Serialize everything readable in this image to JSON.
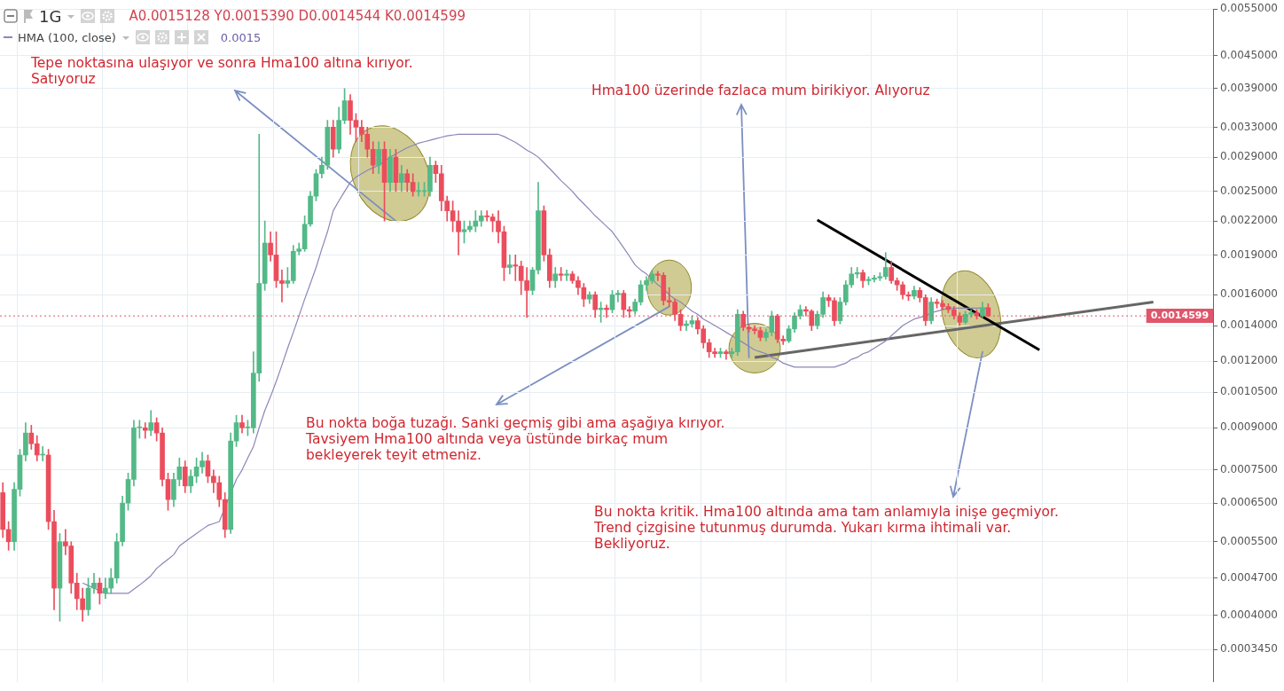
{
  "chart_data": {
    "type": "candlestick",
    "title": "1G",
    "categories": [
      null,
      null,
      null,
      null,
      null,
      null,
      null,
      null,
      null,
      null,
      null,
      null,
      null,
      null,
      null,
      null,
      null,
      null,
      null,
      null,
      null,
      null,
      null,
      null,
      null,
      null,
      null,
      null,
      null,
      null,
      null,
      null,
      null,
      null,
      null,
      null,
      null,
      null,
      null,
      null,
      null,
      null,
      null,
      null,
      null,
      null,
      null,
      null,
      null,
      null,
      null,
      null,
      null,
      null,
      null,
      null,
      null,
      null,
      null,
      null,
      null,
      null,
      null,
      null,
      null,
      null,
      null,
      null,
      null,
      null,
      null,
      null,
      null,
      null,
      null,
      null,
      null,
      null,
      null,
      null,
      null,
      null,
      null,
      null,
      null,
      null,
      null,
      null,
      null,
      null,
      null,
      null,
      null,
      null,
      null,
      null,
      null,
      null,
      null,
      null,
      null,
      null,
      null,
      null,
      null,
      null,
      null,
      null,
      null,
      null,
      null,
      null,
      null,
      null,
      null,
      null,
      null,
      null,
      null,
      null,
      null,
      null,
      null,
      null,
      null,
      null,
      null,
      null,
      null,
      null,
      null,
      null,
      null,
      null,
      null,
      null,
      null,
      null,
      null,
      null,
      null,
      null,
      null,
      null,
      null,
      null,
      null,
      null,
      null,
      null,
      null,
      null,
      null,
      null,
      null,
      null,
      null,
      null,
      null,
      null,
      null,
      null,
      null,
      null,
      null,
      null,
      null,
      null,
      null,
      null,
      null,
      null,
      null,
      null,
      null,
      null,
      null,
      null,
      null,
      null,
      null,
      null,
      null,
      null,
      null,
      null,
      null,
      null,
      null,
      null,
      null,
      null,
      null,
      null,
      null,
      null,
      null,
      null,
      null,
      null,
      null,
      null,
      null,
      null,
      null,
      null,
      null,
      null,
      null,
      null,
      null,
      null,
      null
    ],
    "ohlc": [
      [
        0.00068,
        0.00071,
        0.00056,
        0.00058
      ],
      [
        0.00058,
        0.0006,
        0.00053,
        0.00055
      ],
      [
        0.00055,
        0.00071,
        0.00053,
        0.00069
      ],
      [
        0.00069,
        0.00082,
        0.00067,
        0.0008
      ],
      [
        0.0008,
        0.00092,
        0.00078,
        0.00088
      ],
      [
        0.00088,
        0.00091,
        0.00082,
        0.00084
      ],
      [
        0.00084,
        0.00087,
        0.00078,
        0.0008
      ],
      [
        0.0008,
        0.00083,
        0.00078,
        0.0008
      ],
      [
        0.0008,
        0.00082,
        0.00058,
        0.0006
      ],
      [
        0.0006,
        0.00063,
        0.00041,
        0.00045
      ],
      [
        0.00045,
        0.00057,
        0.00039,
        0.00055
      ],
      [
        0.00055,
        0.00058,
        0.00052,
        0.00054
      ],
      [
        0.00054,
        0.00055,
        0.00044,
        0.00046
      ],
      [
        0.00046,
        0.00048,
        0.00041,
        0.00043
      ],
      [
        0.00043,
        0.00045,
        0.00039,
        0.00041
      ],
      [
        0.00041,
        0.00047,
        0.0004,
        0.00045
      ],
      [
        0.00045,
        0.00048,
        0.00044,
        0.00046
      ],
      [
        0.00046,
        0.00047,
        0.00042,
        0.00044
      ],
      [
        0.00044,
        0.00047,
        0.00043,
        0.00045
      ],
      [
        0.00045,
        0.00049,
        0.00044,
        0.00047
      ],
      [
        0.00047,
        0.00057,
        0.00046,
        0.00055
      ],
      [
        0.00055,
        0.00067,
        0.00054,
        0.00065
      ],
      [
        0.00065,
        0.00074,
        0.00063,
        0.00072
      ],
      [
        0.00072,
        0.00093,
        0.0007,
        0.0009
      ],
      [
        0.0009,
        0.00093,
        0.00086,
        0.0009
      ],
      [
        0.0009,
        0.00092,
        0.00086,
        0.00089
      ],
      [
        0.00089,
        0.00097,
        0.00087,
        0.00092
      ],
      [
        0.00092,
        0.00094,
        0.00085,
        0.00088
      ],
      [
        0.00088,
        0.0009,
        0.0007,
        0.00072
      ],
      [
        0.00072,
        0.00074,
        0.00063,
        0.00066
      ],
      [
        0.00066,
        0.00074,
        0.00064,
        0.00072
      ],
      [
        0.00072,
        0.00079,
        0.0007,
        0.00076
      ],
      [
        0.00076,
        0.00078,
        0.00068,
        0.0007
      ],
      [
        0.0007,
        0.00075,
        0.00068,
        0.00073
      ],
      [
        0.00073,
        0.00079,
        0.00071,
        0.00076
      ],
      [
        0.00076,
        0.00081,
        0.00074,
        0.00078
      ],
      [
        0.00078,
        0.0008,
        0.00071,
        0.00073
      ],
      [
        0.00073,
        0.00075,
        0.00068,
        0.00071
      ],
      [
        0.00071,
        0.00073,
        0.00064,
        0.00066
      ],
      [
        0.00066,
        0.00068,
        0.00056,
        0.00058
      ],
      [
        0.00058,
        0.00088,
        0.00057,
        0.00085
      ],
      [
        0.00085,
        0.00095,
        0.00083,
        0.00092
      ],
      [
        0.00092,
        0.00095,
        0.00088,
        0.0009
      ],
      [
        0.0009,
        0.00093,
        0.00087,
        0.0009
      ],
      [
        0.0009,
        0.00125,
        0.00088,
        0.00114
      ],
      [
        0.00114,
        0.0032,
        0.0011,
        0.00168
      ],
      [
        0.00168,
        0.0022,
        0.00163,
        0.002
      ],
      [
        0.002,
        0.0021,
        0.00185,
        0.0019
      ],
      [
        0.0019,
        0.0021,
        0.00165,
        0.0017
      ],
      [
        0.0017,
        0.00178,
        0.00155,
        0.00168
      ],
      [
        0.00168,
        0.0018,
        0.00165,
        0.0017
      ],
      [
        0.0017,
        0.00198,
        0.00168,
        0.00193
      ],
      [
        0.00193,
        0.002,
        0.0019,
        0.00195
      ],
      [
        0.00195,
        0.00225,
        0.00193,
        0.00217
      ],
      [
        0.00217,
        0.0025,
        0.00215,
        0.00245
      ],
      [
        0.00245,
        0.00275,
        0.0024,
        0.0027
      ],
      [
        0.0027,
        0.0029,
        0.00265,
        0.0028
      ],
      [
        0.0028,
        0.0034,
        0.00275,
        0.0033
      ],
      [
        0.0033,
        0.0034,
        0.0029,
        0.003
      ],
      [
        0.003,
        0.0036,
        0.00295,
        0.0034
      ],
      [
        0.0034,
        0.0039,
        0.00335,
        0.0037
      ],
      [
        0.0037,
        0.0038,
        0.0032,
        0.0034
      ],
      [
        0.0034,
        0.0035,
        0.0031,
        0.0033
      ],
      [
        0.0033,
        0.0034,
        0.0031,
        0.0032
      ],
      [
        0.0032,
        0.0033,
        0.0029,
        0.003
      ],
      [
        0.003,
        0.0031,
        0.0027,
        0.0028
      ],
      [
        0.0028,
        0.0031,
        0.0027,
        0.003
      ],
      [
        0.003,
        0.0031,
        0.0022,
        0.0026
      ],
      [
        0.0026,
        0.003,
        0.0025,
        0.0029
      ],
      [
        0.0029,
        0.003,
        0.0025,
        0.0026
      ],
      [
        0.0026,
        0.0028,
        0.0025,
        0.0027
      ],
      [
        0.0027,
        0.00275,
        0.0025,
        0.0026
      ],
      [
        0.0026,
        0.0027,
        0.00245,
        0.0025
      ],
      [
        0.0025,
        0.0026,
        0.00245,
        0.0025
      ],
      [
        0.0025,
        0.0026,
        0.00245,
        0.0025
      ],
      [
        0.0025,
        0.0029,
        0.00245,
        0.0028
      ],
      [
        0.0028,
        0.00285,
        0.0026,
        0.0027
      ],
      [
        0.0027,
        0.0028,
        0.0023,
        0.0024
      ],
      [
        0.0024,
        0.00245,
        0.0022,
        0.0023
      ],
      [
        0.0023,
        0.0024,
        0.0021,
        0.0022
      ],
      [
        0.0022,
        0.0023,
        0.0019,
        0.0021
      ],
      [
        0.0021,
        0.0022,
        0.002,
        0.00212
      ],
      [
        0.00212,
        0.0022,
        0.0021,
        0.00215
      ],
      [
        0.00215,
        0.0023,
        0.0021,
        0.0022
      ],
      [
        0.0022,
        0.0023,
        0.00215,
        0.00225
      ],
      [
        0.00225,
        0.0023,
        0.0022,
        0.00224
      ],
      [
        0.00224,
        0.00227,
        0.0021,
        0.0022
      ],
      [
        0.0022,
        0.0023,
        0.002,
        0.0021
      ],
      [
        0.0021,
        0.00215,
        0.0017,
        0.0018
      ],
      [
        0.0018,
        0.0019,
        0.00175,
        0.00182
      ],
      [
        0.00182,
        0.0019,
        0.0017,
        0.00181
      ],
      [
        0.00181,
        0.00185,
        0.0016,
        0.0017
      ],
      [
        0.0017,
        0.0018,
        0.00145,
        0.00163
      ],
      [
        0.00163,
        0.0018,
        0.0016,
        0.00178
      ],
      [
        0.00178,
        0.0026,
        0.00175,
        0.0023
      ],
      [
        0.0023,
        0.00235,
        0.00185,
        0.0019
      ],
      [
        0.0019,
        0.00195,
        0.00165,
        0.0017
      ],
      [
        0.0017,
        0.0018,
        0.00165,
        0.00175
      ],
      [
        0.00175,
        0.0018,
        0.0017,
        0.00174
      ],
      [
        0.00174,
        0.00178,
        0.0017,
        0.00175
      ],
      [
        0.00175,
        0.00177,
        0.00168,
        0.0017
      ],
      [
        0.0017,
        0.00173,
        0.0016,
        0.00165
      ],
      [
        0.00165,
        0.00168,
        0.00152,
        0.00157
      ],
      [
        0.00157,
        0.00162,
        0.00154,
        0.0016
      ],
      [
        0.0016,
        0.00162,
        0.00145,
        0.0015
      ],
      [
        0.0015,
        0.00155,
        0.00142,
        0.00151
      ],
      [
        0.00151,
        0.00153,
        0.00145,
        0.0015
      ],
      [
        0.0015,
        0.00163,
        0.00148,
        0.0016
      ],
      [
        0.0016,
        0.00163,
        0.00155,
        0.00161
      ],
      [
        0.00161,
        0.00163,
        0.00145,
        0.0015
      ],
      [
        0.0015,
        0.00152,
        0.00145,
        0.00149
      ],
      [
        0.00149,
        0.00157,
        0.00147,
        0.00155
      ],
      [
        0.00155,
        0.0017,
        0.00153,
        0.00167
      ],
      [
        0.00167,
        0.00173,
        0.00163,
        0.0017
      ],
      [
        0.0017,
        0.00178,
        0.00168,
        0.00175
      ],
      [
        0.00175,
        0.00177,
        0.0017,
        0.00174
      ],
      [
        0.00174,
        0.00176,
        0.00153,
        0.00156
      ],
      [
        0.00156,
        0.00165,
        0.00152,
        0.00155
      ],
      [
        0.00155,
        0.00157,
        0.00143,
        0.00147
      ],
      [
        0.00147,
        0.0015,
        0.00137,
        0.0014
      ],
      [
        0.0014,
        0.00143,
        0.00137,
        0.00141
      ],
      [
        0.00141,
        0.00146,
        0.00139,
        0.00143
      ],
      [
        0.00143,
        0.00145,
        0.00135,
        0.00138
      ],
      [
        0.00138,
        0.0014,
        0.00127,
        0.0013
      ],
      [
        0.0013,
        0.00132,
        0.00122,
        0.00125
      ],
      [
        0.00125,
        0.00127,
        0.00122,
        0.00124
      ],
      [
        0.00124,
        0.00127,
        0.00122,
        0.00125
      ],
      [
        0.00125,
        0.00126,
        0.00121,
        0.00124
      ],
      [
        0.00124,
        0.00127,
        0.00122,
        0.00125
      ],
      [
        0.00125,
        0.0015,
        0.00123,
        0.00147
      ],
      [
        0.00147,
        0.00149,
        0.00137,
        0.00139
      ],
      [
        0.00139,
        0.00141,
        0.00136,
        0.00138
      ],
      [
        0.00138,
        0.0014,
        0.00135,
        0.00137
      ],
      [
        0.00137,
        0.00139,
        0.00131,
        0.00133
      ],
      [
        0.00133,
        0.00138,
        0.00131,
        0.00136
      ],
      [
        0.00136,
        0.00149,
        0.00134,
        0.00146
      ],
      [
        0.00146,
        0.00147,
        0.0013,
        0.00132
      ],
      [
        0.00132,
        0.00134,
        0.00129,
        0.00131
      ],
      [
        0.00131,
        0.0014,
        0.0013,
        0.00138
      ],
      [
        0.00138,
        0.00148,
        0.00136,
        0.00146
      ],
      [
        0.00146,
        0.00153,
        0.00144,
        0.0015
      ],
      [
        0.0015,
        0.00152,
        0.00146,
        0.00149
      ],
      [
        0.00149,
        0.0015,
        0.00137,
        0.0014
      ],
      [
        0.0014,
        0.00149,
        0.00138,
        0.00147
      ],
      [
        0.00147,
        0.00162,
        0.00145,
        0.00158
      ],
      [
        0.00158,
        0.0016,
        0.00152,
        0.00156
      ],
      [
        0.00156,
        0.00158,
        0.0014,
        0.00143
      ],
      [
        0.00143,
        0.00158,
        0.00141,
        0.00155
      ],
      [
        0.00155,
        0.0017,
        0.00153,
        0.00167
      ],
      [
        0.00167,
        0.0018,
        0.00165,
        0.00175
      ],
      [
        0.00175,
        0.0018,
        0.00172,
        0.00176
      ],
      [
        0.00176,
        0.00178,
        0.00165,
        0.0017
      ],
      [
        0.0017,
        0.00173,
        0.00167,
        0.00171
      ],
      [
        0.00171,
        0.00174,
        0.00169,
        0.00172
      ],
      [
        0.00172,
        0.00176,
        0.0017,
        0.00173
      ],
      [
        0.00173,
        0.00192,
        0.00171,
        0.0018
      ],
      [
        0.0018,
        0.00185,
        0.00168,
        0.0017
      ],
      [
        0.0017,
        0.00172,
        0.00163,
        0.00167
      ],
      [
        0.00167,
        0.00169,
        0.00157,
        0.0016
      ],
      [
        0.0016,
        0.00162,
        0.00156,
        0.00159
      ],
      [
        0.00159,
        0.00166,
        0.00157,
        0.00163
      ],
      [
        0.00163,
        0.00165,
        0.00155,
        0.00158
      ],
      [
        0.00158,
        0.0016,
        0.0014,
        0.00143
      ],
      [
        0.00143,
        0.00158,
        0.00141,
        0.00155
      ],
      [
        0.00155,
        0.00157,
        0.00151,
        0.00154
      ],
      [
        0.00154,
        0.00156,
        0.0015,
        0.00152
      ],
      [
        0.00152,
        0.00154,
        0.00148,
        0.0015
      ],
      [
        0.0015,
        0.00152,
        0.00144,
        0.00146
      ],
      [
        0.00146,
        0.00148,
        0.0014,
        0.00142
      ],
      [
        0.00142,
        0.00149,
        0.00141,
        0.00147
      ],
      [
        0.00147,
        0.0015,
        0.00145,
        0.00148
      ],
      [
        0.00148,
        0.0015,
        0.00144,
        0.00146
      ],
      [
        0.00146,
        0.00155,
        0.00145,
        0.0015128
      ],
      [
        0.0015128,
        0.001539,
        0.0014544,
        0.0014599
      ],
      null,
      null,
      null,
      null,
      null,
      null,
      null,
      null,
      null,
      null,
      null,
      null,
      null,
      null,
      null,
      null,
      null,
      null,
      null,
      null,
      null,
      null,
      null,
      null,
      null,
      null,
      null,
      null,
      null,
      null,
      null,
      null,
      null,
      null,
      null,
      null,
      null,
      null,
      null
    ],
    "series": [
      {
        "name": "HMA (100, close)",
        "type": "line",
        "color": "#8b86b8",
        "values": [
          null,
          null,
          null,
          null,
          null,
          null,
          null,
          null,
          null,
          null,
          null,
          null,
          null,
          null,
          0.00046,
          0.000455,
          0.00045,
          0.000445,
          0.00044,
          0.00044,
          0.00044,
          0.00044,
          0.00044,
          0.000448,
          0.000456,
          0.000465,
          0.000475,
          0.00049,
          0.0005,
          0.00051,
          0.00052,
          0.00054,
          0.00055,
          0.00056,
          0.00057,
          0.00058,
          0.00059,
          0.000595,
          0.0006,
          null,
          null,
          0.00072,
          0.00075,
          0.00079,
          0.00083,
          0.0009,
          0.00097,
          0.00103,
          0.0011,
          0.00118,
          0.00127,
          0.00136,
          0.00146,
          0.00157,
          0.00168,
          0.0018,
          0.00195,
          0.0021,
          0.0023,
          0.0024,
          0.0025,
          0.0026,
          0.00266,
          0.0027,
          0.00274,
          0.00277,
          0.0028,
          0.00285,
          0.0029,
          0.00294,
          0.00298,
          0.00302,
          0.00305,
          0.00308,
          0.0031,
          0.00312,
          0.00314,
          0.00316,
          0.00318,
          0.00319,
          0.0032,
          0.0032,
          0.0032,
          0.0032,
          0.0032,
          0.0032,
          0.0032,
          0.0032,
          0.00317,
          0.00313,
          0.00309,
          0.00304,
          0.00299,
          0.00295,
          0.0029,
          0.00283,
          0.00276,
          0.00269,
          0.00262,
          0.00256,
          0.0025,
          0.00243,
          0.00237,
          0.00231,
          0.00225,
          0.0022,
          0.00215,
          0.0021,
          0.00203,
          0.00196,
          0.00189,
          0.00182,
          0.00178,
          0.00175,
          0.00171,
          0.00167,
          0.00164,
          0.0016,
          0.00157,
          0.00155,
          0.00152,
          0.00149,
          0.00147,
          0.00144,
          0.00142,
          0.0014,
          0.00138,
          0.00136,
          0.00134,
          0.00132,
          0.0013,
          0.00128,
          0.00126,
          0.00125,
          0.00124,
          0.00122,
          0.00121,
          0.00119,
          0.00118,
          0.00117,
          0.00117,
          0.00117,
          0.00117,
          0.00117,
          0.00117,
          0.00117,
          0.00117,
          0.00118,
          0.00119,
          0.00121,
          0.00122,
          0.00124,
          0.00125,
          0.00127,
          0.00129,
          0.00131,
          0.00134,
          0.00137,
          0.0014,
          0.00142,
          0.00144,
          0.00145,
          0.00146,
          0.00148,
          0.00149,
          0.0015,
          0.00151,
          0.00151,
          0.00151,
          0.00151,
          0.00151,
          0.00151,
          0.00151,
          0.00151,
          null,
          null,
          null,
          null,
          null,
          null,
          null,
          null,
          null,
          null,
          null,
          null,
          null,
          null,
          null,
          null,
          null,
          null,
          null,
          null,
          null,
          null,
          null,
          null,
          null,
          null,
          null,
          null,
          null,
          null,
          null,
          null,
          null,
          null,
          null,
          null,
          null,
          null,
          null
        ]
      },
      {
        "type": "line",
        "color": "#000000",
        "values": [
          null,
          null,
          null,
          null,
          null,
          null,
          null,
          null,
          null,
          null,
          null,
          null,
          null,
          null,
          null,
          null,
          null,
          null,
          null,
          null,
          null,
          null,
          null,
          null,
          null,
          null,
          null,
          null,
          null,
          null,
          null,
          null,
          null,
          null,
          null,
          null,
          null,
          null,
          null,
          null,
          null,
          null,
          null,
          null,
          null,
          null,
          null,
          null,
          null,
          null,
          null,
          null,
          null,
          null,
          null,
          null,
          null,
          null,
          null,
          null,
          null,
          null,
          null,
          null,
          null,
          null,
          null,
          null,
          null,
          null,
          null,
          null,
          null,
          null,
          null,
          null,
          null,
          null,
          null,
          null,
          null,
          null,
          null,
          null,
          null,
          null,
          null,
          null,
          null,
          null,
          null,
          null,
          null,
          null,
          null,
          null,
          null,
          null,
          null,
          null,
          null,
          null,
          null,
          null,
          null,
          null,
          null,
          null,
          null,
          null,
          null,
          null,
          null,
          null,
          null,
          null,
          null,
          null,
          null,
          null,
          null,
          null,
          null,
          null,
          null,
          null,
          null,
          null,
          null,
          null,
          null,
          null,
          null,
          null,
          null,
          null,
          null,
          null,
          null,
          null,
          null,
          null,
          null,
          0.00221,
          null,
          null,
          null,
          null,
          null,
          null,
          null,
          null,
          null,
          null,
          null,
          null,
          null,
          null,
          null,
          null,
          null,
          null,
          null,
          null,
          null,
          null,
          null,
          null,
          null,
          null,
          null,
          null,
          null,
          null,
          null,
          null,
          null,
          null,
          null,
          null,
          null,
          null,
          0.00126,
          null,
          null,
          null,
          null,
          null,
          null,
          null,
          null,
          null,
          null,
          null,
          null,
          null,
          null,
          null,
          null,
          null,
          null,
          null,
          null,
          null,
          null,
          null,
          null,
          null,
          null,
          null,
          null,
          null,
          null
        ]
      },
      {
        "type": "line",
        "color": "#666666",
        "values": [
          null,
          null,
          null,
          null,
          null,
          null,
          null,
          null,
          null,
          null,
          null,
          null,
          null,
          null,
          null,
          null,
          null,
          null,
          null,
          null,
          null,
          null,
          null,
          null,
          null,
          null,
          null,
          null,
          null,
          null,
          null,
          null,
          null,
          null,
          null,
          null,
          null,
          null,
          null,
          null,
          null,
          null,
          null,
          null,
          null,
          null,
          null,
          null,
          null,
          null,
          null,
          null,
          null,
          null,
          null,
          null,
          null,
          null,
          null,
          null,
          null,
          null,
          null,
          null,
          null,
          null,
          null,
          null,
          null,
          null,
          null,
          null,
          null,
          null,
          null,
          null,
          null,
          null,
          null,
          null,
          null,
          null,
          null,
          null,
          null,
          null,
          null,
          null,
          null,
          null,
          null,
          null,
          null,
          null,
          null,
          null,
          null,
          null,
          null,
          null,
          null,
          null,
          null,
          null,
          null,
          null,
          null,
          null,
          null,
          null,
          null,
          null,
          null,
          null,
          null,
          null,
          null,
          null,
          null,
          null,
          null,
          null,
          null,
          null,
          null,
          null,
          null,
          null,
          null,
          null,
          null,
          null,
          0.00122,
          null,
          null,
          null,
          null,
          null,
          null,
          null,
          null,
          null,
          null,
          null,
          null,
          null,
          null,
          null,
          null,
          null,
          null,
          null,
          null,
          null,
          null,
          null,
          null,
          null,
          null,
          null,
          null,
          null,
          null,
          null,
          null,
          null,
          null,
          null,
          null,
          null,
          null,
          null,
          null,
          null,
          null,
          null,
          null,
          null,
          null,
          null,
          null,
          null,
          null,
          null,
          null,
          null,
          null,
          null,
          null,
          null,
          null,
          null,
          null,
          null,
          null,
          null,
          null,
          null,
          null,
          null,
          null,
          null,
          0.00155,
          null,
          null,
          null,
          null,
          null,
          null,
          null,
          null,
          null,
          null
        ]
      }
    ],
    "ylim": [
      0.000345,
      0.0055
    ],
    "yticks": [
      {
        "value": 0.000345,
        "label": "0.0003450"
      },
      {
        "value": 0.0004,
        "label": "0.0004000"
      },
      {
        "value": 0.00047,
        "label": "0.0004700"
      },
      {
        "value": 0.00055,
        "label": "0.0005500"
      },
      {
        "value": 0.00065,
        "label": "0.0006500"
      },
      {
        "value": 0.00075,
        "label": "0.0007500"
      },
      {
        "value": 0.0009,
        "label": "0.0009000"
      },
      {
        "value": 0.00105,
        "label": "0.0010500"
      },
      {
        "value": 0.0012,
        "label": "0.0012000"
      },
      {
        "value": 0.0014,
        "label": "0.0014000"
      },
      {
        "value": 0.0016,
        "label": "0.0016000"
      },
      {
        "value": 0.0019,
        "label": "0.0019000"
      },
      {
        "value": 0.0022,
        "label": "0.0022000"
      },
      {
        "value": 0.0025,
        "label": "0.0025000"
      },
      {
        "value": 0.0029,
        "label": "0.0029000"
      },
      {
        "value": 0.0033,
        "label": "0.0033000"
      },
      {
        "value": 0.0039,
        "label": "0.0039000"
      },
      {
        "value": 0.0045,
        "label": "0.0045000"
      },
      {
        "value": 0.0055,
        "label": "0.0055000"
      }
    ],
    "log": true,
    "grid": true,
    "legend": "top left",
    "tick_labels": "y",
    "ref_lines": [
      {
        "axis": "y",
        "value": 0.0014599,
        "label": "0.0014599",
        "color": "#e0556a",
        "line_style": "dotted"
      }
    ],
    "annotations": [
      "A0.0015128 Y0.0015390 D0.0014544 K0.0014599",
      "0.0015",
      "Tepe noktasına ulaşıyor ve sonra Hma100 altına kırıyor.\nSatıyoruz",
      "Hma100 üzerinde fazlaca mum birikiyor. Alıyoruz",
      "Bu nokta boğa tuzağı. Sanki geçmiş gibi ama aşağıya kırıyor.\nTavsiyem Hma100 altında veya üstünde birkaç mum\nbekleyerek teyit etmeniz.",
      "Bu nokta kritik. Hma100 altında ama tam anlamıyla inişe geçmiyor.\nTrend çizgisine tutunmuş durumda. Yukarı kırma ihtimali var.\nBekliyoruz."
    ]
  }
}
